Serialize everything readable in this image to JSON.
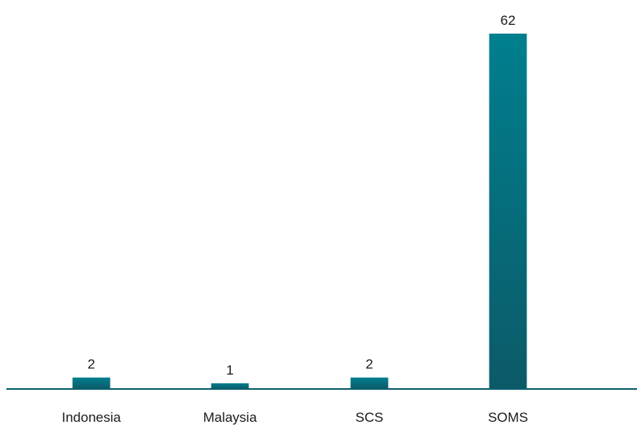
{
  "chart_data": {
    "type": "bar",
    "categories": [
      "Indonesia",
      "Malaysia",
      "SCS",
      "SOMS"
    ],
    "values": [
      2,
      1,
      2,
      62
    ],
    "title": "",
    "xlabel": "",
    "ylabel": "",
    "ylim": [
      0,
      62
    ],
    "grid": false,
    "legend": "none",
    "data_labels": true
  },
  "colors": {
    "bar_top": "#007f8e",
    "bar_bottom": "#0c5a68",
    "axis": "#0b5f6d",
    "text": "#1a1a1a"
  }
}
